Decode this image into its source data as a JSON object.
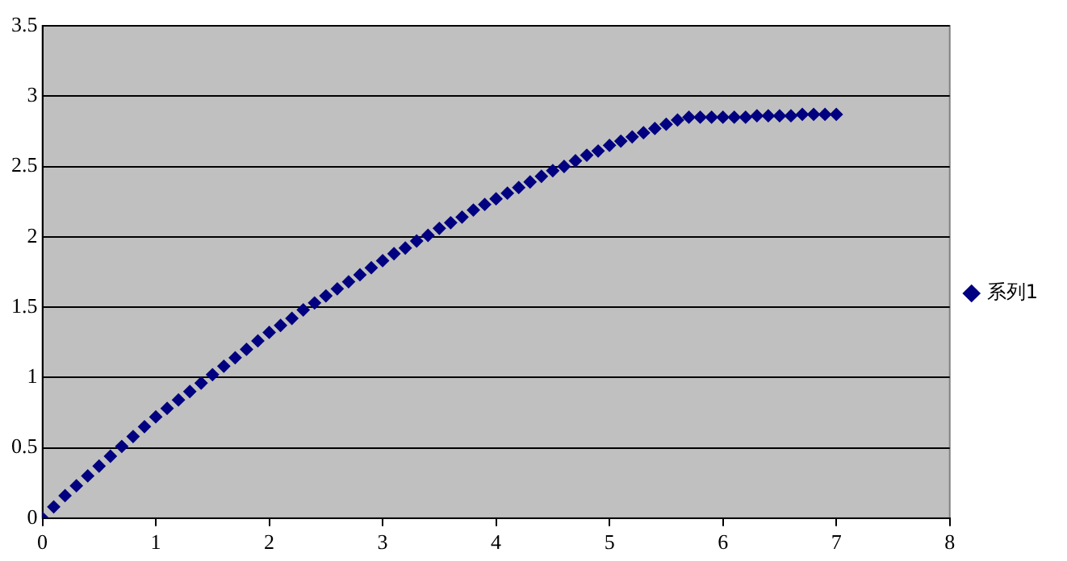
{
  "chart_data": {
    "type": "scatter",
    "marker": "diamond",
    "legend": "right",
    "grid": "y",
    "xlim": [
      0,
      8
    ],
    "xticks": [
      0,
      1,
      2,
      3,
      4,
      5,
      6,
      7,
      8
    ],
    "ylim": [
      0,
      3.5
    ],
    "yticks": [
      0,
      0.5,
      1,
      1.5,
      2,
      2.5,
      3,
      3.5
    ],
    "series": [
      {
        "name": "系列1",
        "color": "#000080",
        "x": [
          0,
          0.1,
          0.2,
          0.3,
          0.4,
          0.5,
          0.6,
          0.7,
          0.8,
          0.9,
          1,
          1.1,
          1.2,
          1.3,
          1.4,
          1.5,
          1.6,
          1.7,
          1.8,
          1.9,
          2,
          2.1,
          2.2,
          2.3,
          2.4,
          2.5,
          2.6,
          2.7,
          2.8,
          2.9,
          3,
          3.1,
          3.2,
          3.3,
          3.4,
          3.5,
          3.6,
          3.7,
          3.8,
          3.9,
          4,
          4.1,
          4.2,
          4.3,
          4.4,
          4.5,
          4.6,
          4.7,
          4.8,
          4.9,
          5,
          5.1,
          5.2,
          5.3,
          5.4,
          5.5,
          5.6,
          5.7,
          5.8,
          5.9,
          6,
          6.1,
          6.2,
          6.3,
          6.4,
          6.5,
          6.6,
          6.7,
          6.8,
          6.9,
          7
        ],
        "values": [
          0,
          0.08,
          0.16,
          0.23,
          0.3,
          0.37,
          0.44,
          0.51,
          0.58,
          0.65,
          0.72,
          0.78,
          0.84,
          0.9,
          0.96,
          1.02,
          1.08,
          1.14,
          1.2,
          1.26,
          1.32,
          1.37,
          1.42,
          1.48,
          1.53,
          1.58,
          1.63,
          1.68,
          1.73,
          1.78,
          1.83,
          1.88,
          1.92,
          1.97,
          2.01,
          2.06,
          2.1,
          2.14,
          2.19,
          2.23,
          2.27,
          2.31,
          2.35,
          2.39,
          2.43,
          2.47,
          2.5,
          2.54,
          2.58,
          2.61,
          2.65,
          2.68,
          2.71,
          2.74,
          2.77,
          2.8,
          2.83,
          2.85,
          2.85,
          2.85,
          2.85,
          2.85,
          2.85,
          2.86,
          2.86,
          2.86,
          2.86,
          2.87,
          2.87,
          2.87,
          2.87
        ]
      }
    ]
  }
}
